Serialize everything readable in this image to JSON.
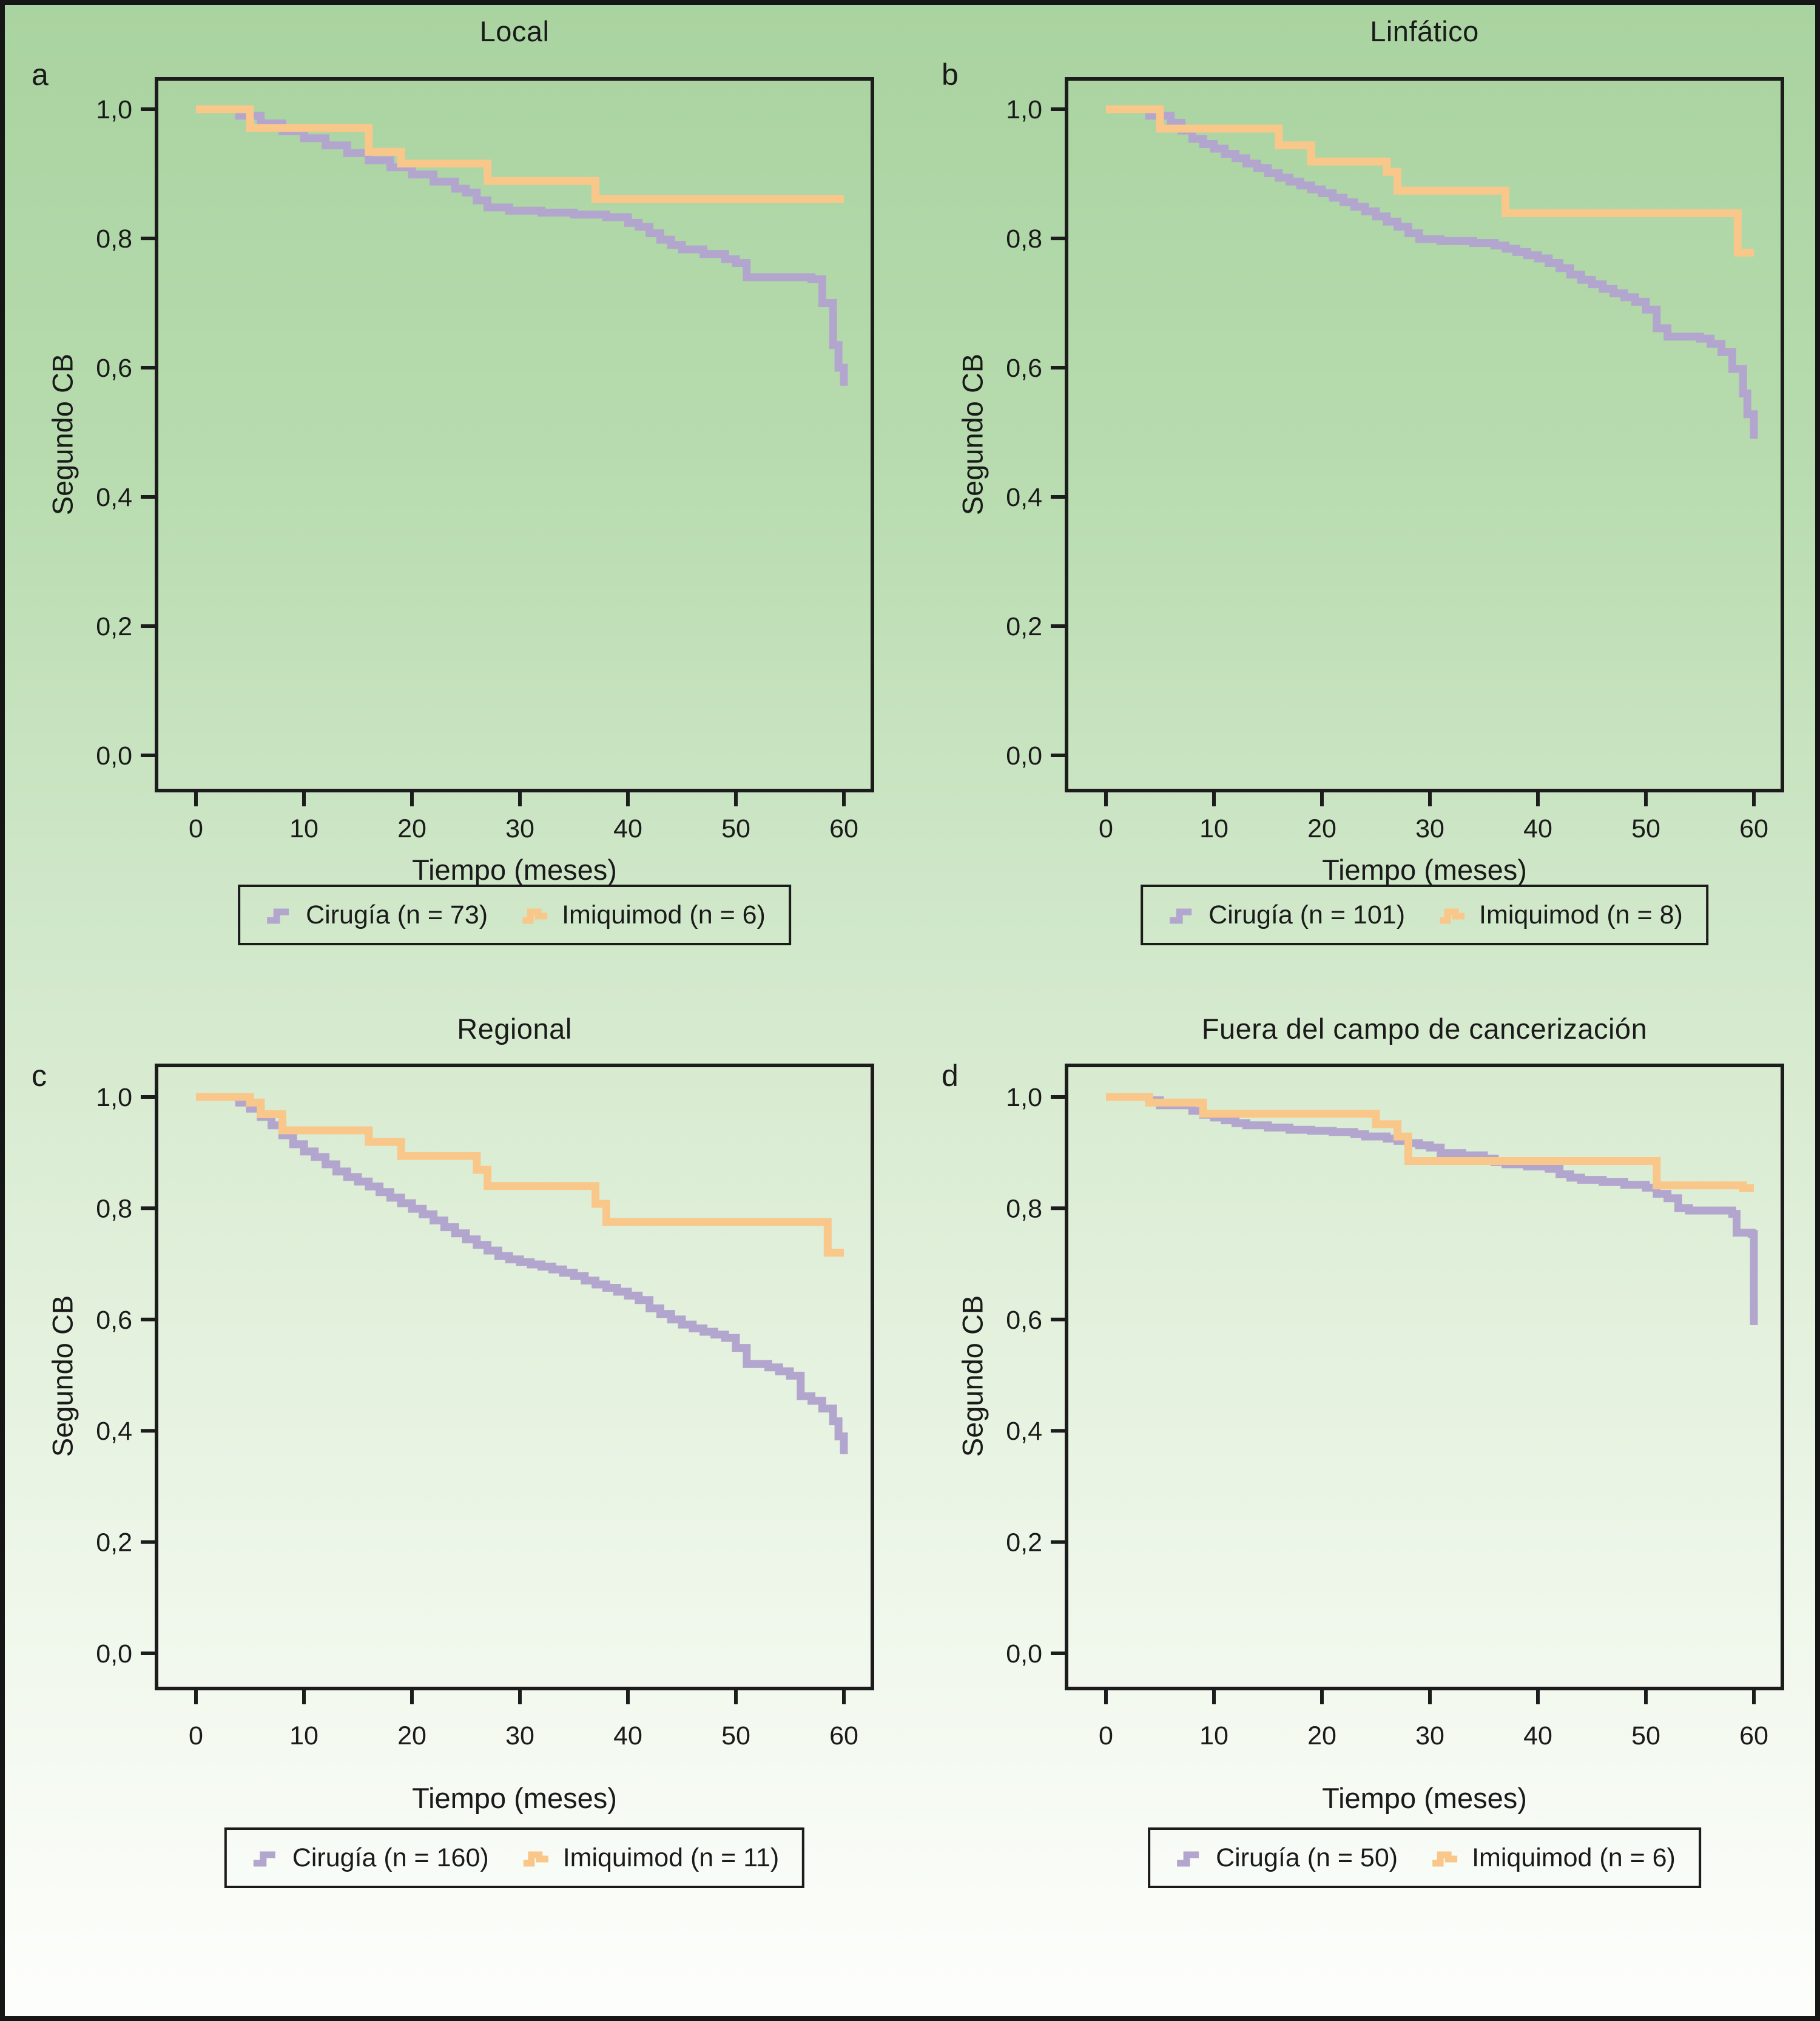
{
  "colors": {
    "cirugia": "#b3a6ce",
    "imiquimod": "#f9c78a",
    "frame": "#1c1c1c",
    "text": "#1a1a1a",
    "background_top": "#a9d3a0",
    "background_bottom": "#fdfefc"
  },
  "axes": {
    "y_label": "Segundo CB",
    "x_label": "Tiempo (meses)",
    "y_ticks": [
      {
        "label": "1,0",
        "value": 1.0
      },
      {
        "label": "0,8",
        "value": 0.8
      },
      {
        "label": "0,6",
        "value": 0.6
      },
      {
        "label": "0,4",
        "value": 0.4
      },
      {
        "label": "0,2",
        "value": 0.2
      },
      {
        "label": "0,0",
        "value": 0.0
      }
    ],
    "x_ticks": [
      {
        "label": "0",
        "value": 0
      },
      {
        "label": "10",
        "value": 10
      },
      {
        "label": "20",
        "value": 20
      },
      {
        "label": "30",
        "value": 30
      },
      {
        "label": "40",
        "value": 40
      },
      {
        "label": "50",
        "value": 50
      },
      {
        "label": "60",
        "value": 60
      }
    ],
    "x_max": 60
  },
  "panels": [
    {
      "letter": "a"
    },
    {
      "letter": "b"
    },
    {
      "letter": "c"
    },
    {
      "letter": "d"
    }
  ],
  "chart_data": [
    {
      "type": "line",
      "step": true,
      "title": "Local",
      "xlabel": "Tiempo (meses)",
      "ylabel": "Segundo CB",
      "xlim": [
        0,
        60
      ],
      "ylim": [
        0.0,
        1.05
      ],
      "x_tick_values": [
        0,
        10,
        20,
        30,
        40,
        50,
        60
      ],
      "y_tick_values": [
        1.0,
        0.8,
        0.6,
        0.4,
        0.2,
        0.0
      ],
      "legend_position": "bottom",
      "series": [
        {
          "name": "Cirugía (n = 73)",
          "color": "#b3a6ce",
          "points": [
            [
              0,
              1
            ],
            [
              4,
              0.99
            ],
            [
              6,
              0.978
            ],
            [
              8,
              0.966
            ],
            [
              10,
              0.955
            ],
            [
              12,
              0.944
            ],
            [
              14,
              0.932
            ],
            [
              16,
              0.921
            ],
            [
              18,
              0.91
            ],
            [
              20,
              0.899
            ],
            [
              22,
              0.888
            ],
            [
              24,
              0.877
            ],
            [
              25,
              0.871
            ],
            [
              26,
              0.859
            ],
            [
              27,
              0.848
            ],
            [
              29,
              0.843
            ],
            [
              32,
              0.84
            ],
            [
              35,
              0.837
            ],
            [
              38,
              0.833
            ],
            [
              40,
              0.824
            ],
            [
              41,
              0.818
            ],
            [
              42,
              0.808
            ],
            [
              43,
              0.798
            ],
            [
              44,
              0.79
            ],
            [
              45,
              0.783
            ],
            [
              47,
              0.776
            ],
            [
              49,
              0.768
            ],
            [
              50,
              0.762
            ],
            [
              51,
              0.74
            ],
            [
              57,
              0.737
            ],
            [
              58,
              0.7
            ],
            [
              59,
              0.635
            ],
            [
              59.5,
              0.6
            ],
            [
              60,
              0.572
            ]
          ]
        },
        {
          "name": "Imiquimod (n = 6)",
          "color": "#f9c78a",
          "points": [
            [
              0,
              1
            ],
            [
              5,
              0.971
            ],
            [
              16,
              0.934
            ],
            [
              19,
              0.916
            ],
            [
              27,
              0.889
            ],
            [
              37,
              0.861
            ]
          ]
        }
      ]
    },
    {
      "type": "line",
      "step": true,
      "title": "Linfático",
      "xlabel": "Tiempo (meses)",
      "ylabel": "Segundo CB",
      "xlim": [
        0,
        60
      ],
      "ylim": [
        0.0,
        1.05
      ],
      "x_tick_values": [
        0,
        10,
        20,
        30,
        40,
        50,
        60
      ],
      "y_tick_values": [
        1.0,
        0.8,
        0.6,
        0.4,
        0.2,
        0.0
      ],
      "legend_position": "bottom",
      "series": [
        {
          "name": "Cirugía (n = 101)",
          "color": "#b3a6ce",
          "points": [
            [
              0,
              1
            ],
            [
              4,
              0.99
            ],
            [
              6,
              0.979
            ],
            [
              7,
              0.967
            ],
            [
              8,
              0.954
            ],
            [
              9,
              0.946
            ],
            [
              10,
              0.939
            ],
            [
              11,
              0.931
            ],
            [
              12,
              0.924
            ],
            [
              13,
              0.916
            ],
            [
              14,
              0.909
            ],
            [
              15,
              0.901
            ],
            [
              16,
              0.894
            ],
            [
              17,
              0.888
            ],
            [
              18,
              0.882
            ],
            [
              19,
              0.876
            ],
            [
              20,
              0.87
            ],
            [
              21,
              0.863
            ],
            [
              22,
              0.856
            ],
            [
              23,
              0.849
            ],
            [
              24,
              0.842
            ],
            [
              25,
              0.834
            ],
            [
              26,
              0.826
            ],
            [
              27,
              0.818
            ],
            [
              28,
              0.808
            ],
            [
              29,
              0.799
            ],
            [
              31,
              0.796
            ],
            [
              34,
              0.793
            ],
            [
              36,
              0.789
            ],
            [
              37,
              0.784
            ],
            [
              38,
              0.779
            ],
            [
              39,
              0.774
            ],
            [
              40,
              0.769
            ],
            [
              41,
              0.762
            ],
            [
              42,
              0.754
            ],
            [
              43,
              0.744
            ],
            [
              44,
              0.736
            ],
            [
              45,
              0.729
            ],
            [
              46,
              0.722
            ],
            [
              47,
              0.715
            ],
            [
              48,
              0.709
            ],
            [
              49,
              0.702
            ],
            [
              50,
              0.69
            ],
            [
              51,
              0.661
            ],
            [
              52,
              0.648
            ],
            [
              55,
              0.645
            ],
            [
              56,
              0.637
            ],
            [
              57,
              0.624
            ],
            [
              58,
              0.598
            ],
            [
              59,
              0.56
            ],
            [
              59.4,
              0.528
            ],
            [
              60,
              0.49
            ]
          ]
        },
        {
          "name": "Imiquimod (n = 8)",
          "color": "#f9c78a",
          "points": [
            [
              0,
              1
            ],
            [
              5,
              0.97
            ],
            [
              16,
              0.944
            ],
            [
              19,
              0.919
            ],
            [
              26,
              0.903
            ],
            [
              27,
              0.874
            ],
            [
              37,
              0.839
            ],
            [
              58.5,
              0.778
            ]
          ]
        }
      ]
    },
    {
      "type": "line",
      "step": true,
      "title": "Regional",
      "xlabel": "Tiempo (meses)",
      "ylabel": "Segundo CB",
      "xlim": [
        0,
        60
      ],
      "ylim": [
        0.0,
        1.05
      ],
      "x_tick_values": [
        0,
        10,
        20,
        30,
        40,
        50,
        60
      ],
      "y_tick_values": [
        1.0,
        0.8,
        0.6,
        0.4,
        0.2,
        0.0
      ],
      "legend_position": "bottom",
      "series": [
        {
          "name": "Cirugía (n = 160)",
          "color": "#b3a6ce",
          "points": [
            [
              0,
              1
            ],
            [
              4,
              0.99
            ],
            [
              5,
              0.979
            ],
            [
              6,
              0.964
            ],
            [
              7,
              0.949
            ],
            [
              8,
              0.931
            ],
            [
              9,
              0.915
            ],
            [
              10,
              0.902
            ],
            [
              11,
              0.892
            ],
            [
              12,
              0.879
            ],
            [
              13,
              0.866
            ],
            [
              14,
              0.856
            ],
            [
              15,
              0.848
            ],
            [
              16,
              0.839
            ],
            [
              17,
              0.829
            ],
            [
              18,
              0.819
            ],
            [
              19,
              0.809
            ],
            [
              20,
              0.799
            ],
            [
              21,
              0.789
            ],
            [
              22,
              0.778
            ],
            [
              23,
              0.766
            ],
            [
              24,
              0.755
            ],
            [
              25,
              0.744
            ],
            [
              26,
              0.734
            ],
            [
              27,
              0.724
            ],
            [
              28,
              0.714
            ],
            [
              29,
              0.708
            ],
            [
              30,
              0.703
            ],
            [
              31,
              0.699
            ],
            [
              32,
              0.695
            ],
            [
              33,
              0.69
            ],
            [
              34,
              0.684
            ],
            [
              35,
              0.678
            ],
            [
              36,
              0.67
            ],
            [
              37,
              0.663
            ],
            [
              38,
              0.657
            ],
            [
              39,
              0.65
            ],
            [
              40,
              0.643
            ],
            [
              41,
              0.635
            ],
            [
              42,
              0.62
            ],
            [
              43,
              0.61
            ],
            [
              44,
              0.6
            ],
            [
              45,
              0.591
            ],
            [
              46,
              0.584
            ],
            [
              47,
              0.578
            ],
            [
              48,
              0.573
            ],
            [
              49,
              0.567
            ],
            [
              50,
              0.549
            ],
            [
              51,
              0.52
            ],
            [
              53,
              0.514
            ],
            [
              54,
              0.507
            ],
            [
              55,
              0.499
            ],
            [
              56,
              0.462
            ],
            [
              57,
              0.454
            ],
            [
              58,
              0.44
            ],
            [
              59,
              0.417
            ],
            [
              59.5,
              0.39
            ],
            [
              60,
              0.358
            ]
          ]
        },
        {
          "name": "Imiquimod (n = 11)",
          "color": "#f9c78a",
          "points": [
            [
              0,
              1
            ],
            [
              5,
              0.99
            ],
            [
              6,
              0.969
            ],
            [
              8,
              0.94
            ],
            [
              16,
              0.919
            ],
            [
              19,
              0.894
            ],
            [
              26,
              0.869
            ],
            [
              27,
              0.84
            ],
            [
              37,
              0.808
            ],
            [
              38,
              0.775
            ],
            [
              58.5,
              0.72
            ]
          ]
        }
      ]
    },
    {
      "type": "line",
      "step": true,
      "title": "Fuera del campo de cancerización",
      "xlabel": "Tiempo (meses)",
      "ylabel": "Segundo CB",
      "xlim": [
        0,
        60
      ],
      "ylim": [
        0.0,
        1.05
      ],
      "x_tick_values": [
        0,
        10,
        20,
        30,
        40,
        50,
        60
      ],
      "y_tick_values": [
        1.0,
        0.8,
        0.6,
        0.4,
        0.2,
        0.0
      ],
      "legend_position": "bottom",
      "series": [
        {
          "name": "Cirugía (n = 50)",
          "color": "#b3a6ce",
          "points": [
            [
              0,
              1
            ],
            [
              4,
              0.994
            ],
            [
              5,
              0.985
            ],
            [
              8,
              0.975
            ],
            [
              9,
              0.968
            ],
            [
              10,
              0.963
            ],
            [
              11,
              0.958
            ],
            [
              12,
              0.953
            ],
            [
              13,
              0.949
            ],
            [
              15,
              0.945
            ],
            [
              17,
              0.941
            ],
            [
              19,
              0.939
            ],
            [
              21,
              0.937
            ],
            [
              23,
              0.933
            ],
            [
              24,
              0.929
            ],
            [
              26,
              0.925
            ],
            [
              27,
              0.921
            ],
            [
              28,
              0.917
            ],
            [
              29,
              0.913
            ],
            [
              30,
              0.909
            ],
            [
              31,
              0.899
            ],
            [
              33,
              0.895
            ],
            [
              35,
              0.889
            ],
            [
              36,
              0.883
            ],
            [
              37,
              0.879
            ],
            [
              39,
              0.875
            ],
            [
              41,
              0.871
            ],
            [
              42,
              0.861
            ],
            [
              43,
              0.855
            ],
            [
              44,
              0.851
            ],
            [
              46,
              0.847
            ],
            [
              48,
              0.842
            ],
            [
              50,
              0.837
            ],
            [
              51,
              0.826
            ],
            [
              52,
              0.818
            ],
            [
              53,
              0.8
            ],
            [
              54,
              0.796
            ],
            [
              58,
              0.79
            ],
            [
              58.4,
              0.756
            ],
            [
              59.8,
              0.754
            ],
            [
              60,
              0.59
            ]
          ]
        },
        {
          "name": "Imiquimod (n = 6)",
          "color": "#f9c78a",
          "points": [
            [
              0,
              1
            ],
            [
              4,
              0.99
            ],
            [
              9,
              0.97
            ],
            [
              25,
              0.951
            ],
            [
              27,
              0.929
            ],
            [
              28,
              0.885
            ],
            [
              51,
              0.841
            ],
            [
              59,
              0.836
            ]
          ]
        }
      ]
    }
  ]
}
